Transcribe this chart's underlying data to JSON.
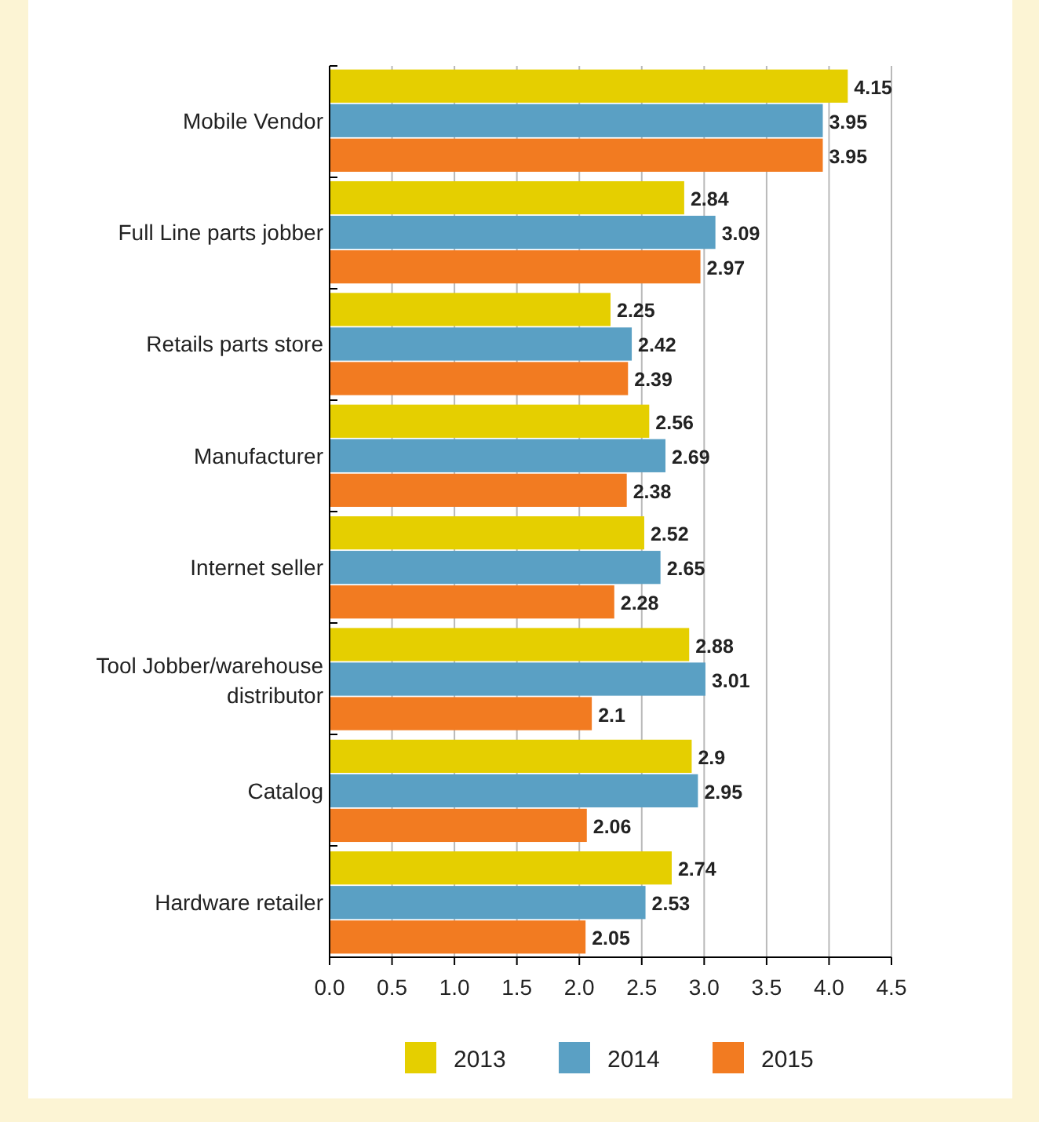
{
  "chart_data": {
    "type": "bar",
    "orientation": "horizontal",
    "categories": [
      "Mobile Vendor",
      "Full Line parts jobber",
      "Retails parts store",
      "Manufacturer",
      "Internet seller",
      "Tool Jobber/warehouse distributor",
      "Catalog",
      "Hardware retailer"
    ],
    "series": [
      {
        "name": "2013",
        "color": "#e5cf00",
        "values": [
          4.15,
          2.84,
          2.25,
          2.56,
          2.52,
          2.88,
          2.9,
          2.74
        ]
      },
      {
        "name": "2014",
        "color": "#5aa0c4",
        "values": [
          3.95,
          3.09,
          2.42,
          2.69,
          2.65,
          3.01,
          2.95,
          2.53
        ]
      },
      {
        "name": "2015",
        "color": "#f27b21",
        "values": [
          3.95,
          2.97,
          2.39,
          2.38,
          2.28,
          2.1,
          2.06,
          2.05
        ]
      }
    ],
    "xlim": [
      0,
      4.5
    ],
    "xticks": [
      {
        "value": 0,
        "label": "0.0"
      },
      {
        "value": 0.5,
        "label": "0.5"
      },
      {
        "value": 1,
        "label": "1.0"
      },
      {
        "value": 1.5,
        "label": "1.5"
      },
      {
        "value": 2,
        "label": "2.0"
      },
      {
        "value": 2.5,
        "label": "2.5"
      },
      {
        "value": 3,
        "label": "3.0"
      },
      {
        "value": 3.5,
        "label": "3.5"
      },
      {
        "value": 4,
        "label": "4.0"
      },
      {
        "value": 4.5,
        "label": "4.5"
      }
    ],
    "grid": "x",
    "legend": "bottom",
    "data_labels": true
  }
}
